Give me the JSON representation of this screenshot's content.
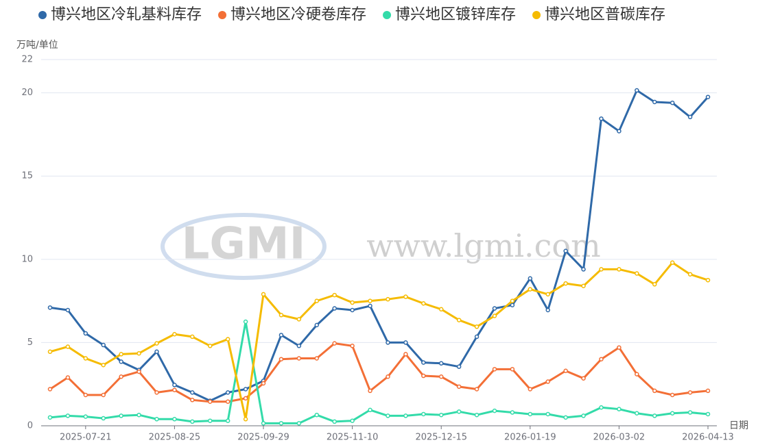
{
  "chart_data": {
    "type": "line",
    "y_axis_label": "万吨/单位",
    "x_axis_label": "日期",
    "watermark": {
      "logo": "LGMI",
      "url": "www.lgmi.com"
    },
    "categories": [
      null,
      null,
      "2025-07-21",
      null,
      null,
      null,
      null,
      "2025-08-25",
      null,
      null,
      null,
      null,
      "2025-09-29",
      null,
      null,
      null,
      null,
      "2025-11-10",
      null,
      null,
      null,
      null,
      "2025-12-15",
      null,
      null,
      null,
      null,
      "2026-01-19",
      null,
      null,
      null,
      null,
      "2026-03-02",
      null,
      null,
      null,
      null,
      "2026-04-13"
    ],
    "series": [
      {
        "name": "博兴地区冷轧基料库存",
        "color": "#2f69a8",
        "values": [
          7.1,
          6.95,
          5.55,
          4.85,
          3.85,
          3.35,
          4.45,
          2.45,
          2.0,
          1.5,
          2.0,
          2.2,
          2.7,
          5.45,
          4.8,
          6.05,
          7.05,
          6.95,
          7.2,
          5.0,
          5.0,
          3.8,
          3.75,
          3.55,
          5.35,
          7.05,
          7.25,
          8.85,
          6.95,
          10.5,
          9.4,
          18.45,
          17.7,
          20.15,
          19.45,
          19.4,
          18.55,
          19.75
        ]
      },
      {
        "name": "博兴地区冷硬卷库存",
        "color": "#f36f36",
        "values": [
          2.2,
          2.9,
          1.85,
          1.85,
          2.95,
          3.25,
          2.0,
          2.15,
          1.55,
          1.45,
          1.45,
          1.65,
          2.55,
          4.0,
          4.05,
          4.05,
          4.95,
          4.8,
          2.1,
          2.95,
          4.3,
          3.0,
          2.95,
          2.35,
          2.2,
          3.4,
          3.4,
          2.2,
          2.65,
          3.3,
          2.85,
          4.0,
          4.7,
          3.1,
          2.1,
          1.85,
          2.0,
          2.1
        ]
      },
      {
        "name": "博兴地区镀锌库存",
        "color": "#33dba9",
        "values": [
          0.5,
          0.6,
          0.55,
          0.45,
          0.6,
          0.65,
          0.4,
          0.4,
          0.25,
          0.3,
          0.3,
          6.25,
          0.15,
          0.15,
          0.15,
          0.65,
          0.25,
          0.3,
          0.95,
          0.6,
          0.6,
          0.7,
          0.65,
          0.85,
          0.65,
          0.9,
          0.8,
          0.7,
          0.7,
          0.5,
          0.6,
          1.1,
          1.0,
          0.75,
          0.6,
          0.75,
          0.8,
          0.7
        ]
      },
      {
        "name": "博兴地区普碳库存",
        "color": "#f5bb00",
        "values": [
          4.45,
          4.75,
          4.05,
          3.65,
          4.3,
          4.35,
          4.95,
          5.5,
          5.35,
          4.8,
          5.2,
          0.4,
          7.9,
          6.65,
          6.4,
          7.5,
          7.85,
          7.4,
          7.5,
          7.6,
          7.75,
          7.35,
          7.0,
          6.35,
          5.95,
          6.6,
          7.5,
          8.2,
          7.9,
          8.55,
          8.4,
          9.4,
          9.4,
          9.15,
          8.5,
          9.8,
          9.1,
          8.75
        ]
      }
    ],
    "ylim": [
      0,
      22
    ],
    "yticks": [
      0,
      5,
      10,
      15,
      20,
      22
    ],
    "grid": true
  }
}
